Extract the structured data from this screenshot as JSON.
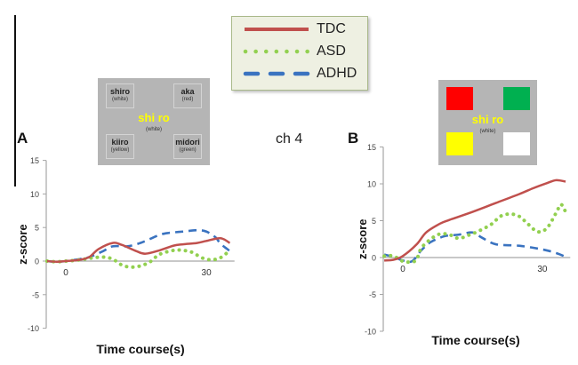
{
  "legend": {
    "items": [
      {
        "label": "TDC",
        "color": "#c0504d",
        "style": "solid"
      },
      {
        "label": "ASD",
        "color": "#92d050",
        "style": "dotted"
      },
      {
        "label": "ADHD",
        "color": "#3a73c0",
        "style": "dashed"
      }
    ]
  },
  "channel_label": "ch 4",
  "stimulus_A": {
    "center_word": "shi ro",
    "center_sub": "(white)",
    "cells": [
      {
        "word": "shiro",
        "sub": "(white)"
      },
      {
        "word": "aka",
        "sub": "(red)"
      },
      {
        "word": "kiiro",
        "sub": "(yellow)"
      },
      {
        "word": "midori",
        "sub": "(green)"
      }
    ]
  },
  "stimulus_B": {
    "center_word": "shi ro",
    "center_sub": "(white)",
    "swatch_colors": [
      "#ff0000",
      "#00b050",
      "#ffff00",
      "#ffffff"
    ]
  },
  "chart_data": [
    {
      "type": "line",
      "panel": "A",
      "title": "",
      "xlabel": "Time course(s)",
      "ylabel": "z-score",
      "xlim": [
        -4,
        36
      ],
      "ylim": [
        -10,
        15
      ],
      "yticks": [
        15,
        10,
        5,
        0,
        -5,
        -10
      ],
      "xticks": [
        0,
        30
      ],
      "grid": false,
      "series": [
        {
          "name": "TDC",
          "x": [
            -4,
            -2,
            0,
            3,
            5,
            7,
            10,
            12,
            15,
            17,
            20,
            23,
            25,
            28,
            30,
            33,
            35
          ],
          "values": [
            0,
            -0.1,
            0,
            0.2,
            0.6,
            1.8,
            2.7,
            2.4,
            1.5,
            1.1,
            1.6,
            2.3,
            2.5,
            2.7,
            3.0,
            3.4,
            2.7
          ]
        },
        {
          "name": "ASD",
          "x": [
            -4,
            -2,
            0,
            2,
            4,
            6,
            8,
            10,
            12,
            14,
            16,
            18,
            20,
            23,
            25,
            27,
            29,
            31,
            33,
            35
          ],
          "values": [
            0,
            -0.1,
            0,
            0.1,
            0.3,
            0.5,
            0.6,
            0.3,
            -0.6,
            -0.9,
            -0.7,
            -0.1,
            1.0,
            1.6,
            1.6,
            1.3,
            0.5,
            0.2,
            0.5,
            1.6
          ]
        },
        {
          "name": "ADHD",
          "x": [
            -4,
            -2,
            0,
            3,
            5,
            8,
            10,
            13,
            15,
            17,
            20,
            22,
            25,
            28,
            30,
            32,
            33,
            35
          ],
          "values": [
            0,
            -0.1,
            0,
            0.3,
            0.6,
            1.5,
            2.2,
            2.2,
            2.5,
            3.0,
            3.9,
            4.2,
            4.4,
            4.6,
            4.4,
            3.5,
            2.6,
            1.5
          ]
        }
      ]
    },
    {
      "type": "line",
      "panel": "B",
      "title": "",
      "xlabel": "Time course(s)",
      "ylabel": "z-score",
      "xlim": [
        -4,
        36
      ],
      "ylim": [
        -10,
        15
      ],
      "yticks": [
        15,
        10,
        5,
        0,
        -5,
        -10
      ],
      "xticks": [
        0,
        30
      ],
      "grid": false,
      "series": [
        {
          "name": "TDC",
          "x": [
            -4,
            -2,
            0,
            3,
            5,
            8,
            10,
            15,
            20,
            25,
            28,
            31,
            33,
            35
          ],
          "values": [
            -0.4,
            -0.3,
            0.2,
            1.8,
            3.4,
            4.6,
            5.1,
            6.2,
            7.4,
            8.6,
            9.4,
            10.1,
            10.5,
            10.3
          ]
        },
        {
          "name": "ASD",
          "x": [
            -4,
            -2,
            0,
            2,
            3,
            4,
            6,
            8,
            10,
            12,
            14,
            16,
            19,
            21,
            23,
            25,
            27,
            29,
            31,
            33,
            34,
            35
          ],
          "values": [
            0.2,
            0.2,
            -0.5,
            -0.6,
            -0.2,
            1.3,
            2.5,
            3.2,
            3.1,
            2.6,
            3.0,
            3.5,
            4.5,
            5.6,
            5.9,
            5.6,
            4.5,
            3.5,
            4.0,
            6.1,
            7.2,
            6.2
          ]
        },
        {
          "name": "ADHD",
          "x": [
            -4,
            -2,
            0,
            2,
            4,
            6,
            9,
            12,
            15,
            17,
            20,
            25,
            30,
            33,
            35
          ],
          "values": [
            0.4,
            0.1,
            -0.4,
            -0.5,
            1.0,
            2.1,
            2.9,
            3.1,
            3.4,
            2.7,
            1.8,
            1.6,
            1.1,
            0.6,
            0.1
          ]
        }
      ]
    }
  ]
}
